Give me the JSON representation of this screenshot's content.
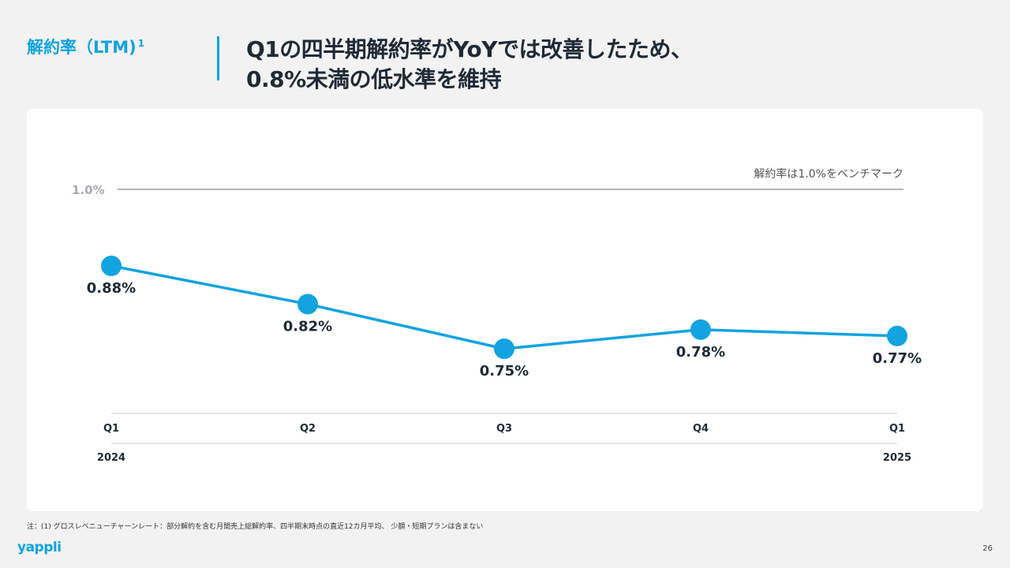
{
  "header": {
    "section_label": "解約率（LTM)",
    "section_sup": "1",
    "headline_line1": "Q1の四半期解約率がYoYでは改善したため、",
    "headline_line2": "0.8%未満の低水準を維持"
  },
  "chart_data": {
    "type": "line",
    "categories": [
      "Q1",
      "Q2",
      "Q3",
      "Q4",
      "Q1"
    ],
    "year_labels": [
      "2024",
      "",
      "",
      "",
      "2025"
    ],
    "values": [
      0.88,
      0.82,
      0.75,
      0.78,
      0.77
    ],
    "data_labels": [
      "0.88%",
      "0.82%",
      "0.75%",
      "0.78%",
      "0.77%"
    ],
    "unit": "%",
    "benchmark": {
      "value": 1.0,
      "label": "1.0%",
      "note": "解約率は1.0%をベンチマーク"
    },
    "ylim": [
      0.5,
      1.05
    ],
    "legend": "none",
    "grid": false,
    "colors": {
      "line": "#12a3e0",
      "marker": "#12a3e0",
      "benchmark": "#888888",
      "benchmark_label": "#a8a8b8",
      "axis": "#cccccc"
    }
  },
  "footer": {
    "footnote": "注：(1) グロスレベニューチャーンレート：部分解約を含む月間売上総解約率、四半期末時点の直近12カ月平均、 少額・短期プランは含まない",
    "logo": "yappli",
    "page_number": "26"
  }
}
